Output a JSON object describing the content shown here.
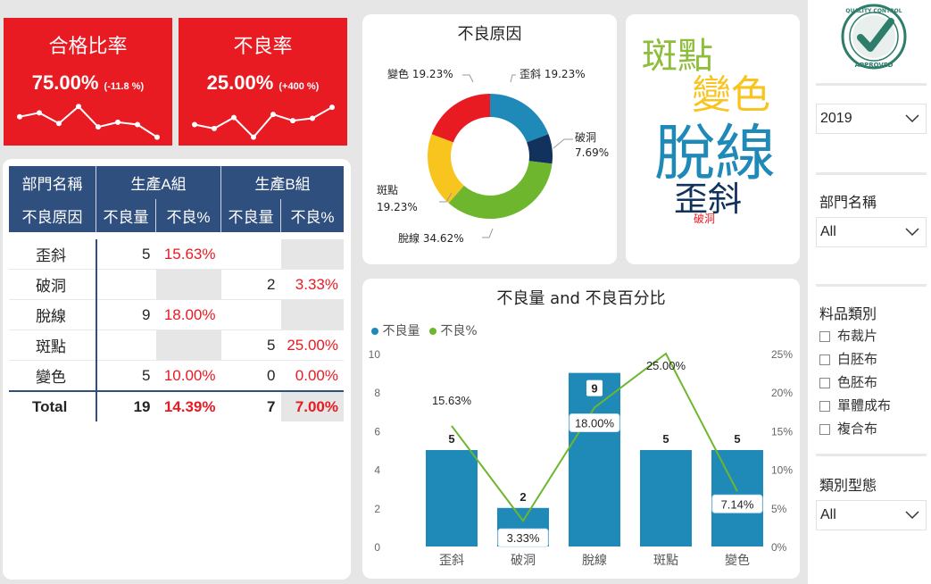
{
  "kpi_pass": {
    "title": "合格比率",
    "value": "75.00%",
    "delta": "(-11.8 %)",
    "trend": [
      0.62,
      0.72,
      0.45,
      0.88,
      0.36,
      0.48,
      0.42,
      0.1
    ]
  },
  "kpi_defect": {
    "title": "不良率",
    "value": "25.00%",
    "delta": "(+400 %)",
    "trend": [
      0.42,
      0.32,
      0.6,
      0.1,
      0.68,
      0.52,
      0.58,
      0.86
    ]
  },
  "matrix": {
    "col_header_dept": "部門名稱",
    "group_a": "生產A組",
    "group_b": "生產B組",
    "row_header": "不良原因",
    "sub_qty": "不良量",
    "sub_pct": "不良%",
    "rows": [
      {
        "cause": "歪斜",
        "a_qty": "5",
        "a_pct": "15.63%",
        "b_qty": "",
        "b_pct": ""
      },
      {
        "cause": "破洞",
        "a_qty": "",
        "a_pct": "",
        "b_qty": "2",
        "b_pct": "3.33%"
      },
      {
        "cause": "脫線",
        "a_qty": "9",
        "a_pct": "18.00%",
        "b_qty": "",
        "b_pct": ""
      },
      {
        "cause": "斑點",
        "a_qty": "",
        "a_pct": "",
        "b_qty": "5",
        "b_pct": "25.00%"
      },
      {
        "cause": "變色",
        "a_qty": "5",
        "a_pct": "10.00%",
        "b_qty": "0",
        "b_pct": "0.00%"
      }
    ],
    "total": {
      "label": "Total",
      "a_qty": "19",
      "a_pct": "14.39%",
      "b_qty": "7",
      "b_pct": "7.00%"
    }
  },
  "donut": {
    "title": "不良原因",
    "labels": [
      {
        "name": "歪斜",
        "pct": "19.23%"
      },
      {
        "name": "破洞",
        "pct": "7.69%"
      },
      {
        "name": "脫線",
        "pct": "34.62%"
      },
      {
        "name": "斑點",
        "pct": "19.23%"
      },
      {
        "name": "變色",
        "pct": "19.23%"
      }
    ]
  },
  "wordcloud": {
    "words": [
      "斑點",
      "變色",
      "脫線",
      "歪斜",
      "破洞"
    ]
  },
  "combo": {
    "title": "不良量 and 不良百分比",
    "legend_qty": "不良量",
    "legend_pct": "不良%",
    "y_left_ticks": [
      "0",
      "2",
      "4",
      "6",
      "8",
      "10"
    ],
    "y_right_ticks": [
      "0%",
      "5%",
      "10%",
      "15%",
      "20%",
      "25%"
    ]
  },
  "chart_data": [
    {
      "type": "pie",
      "title": "不良原因",
      "categories": [
        "歪斜",
        "破洞",
        "脫線",
        "斑點",
        "變色"
      ],
      "values": [
        19.23,
        7.69,
        34.62,
        19.23,
        19.23
      ],
      "colors": [
        "#1f89b8",
        "#12325e",
        "#6db62e",
        "#f8c41e",
        "#e81a22"
      ]
    },
    {
      "type": "bar",
      "title": "不良量 and 不良百分比",
      "categories": [
        "歪斜",
        "破洞",
        "脫線",
        "斑點",
        "變色"
      ],
      "series": [
        {
          "name": "不良量",
          "values": [
            5,
            2,
            9,
            5,
            5
          ],
          "color": "#1f89b8",
          "axis": "left"
        },
        {
          "name": "不良%",
          "values": [
            15.63,
            3.33,
            18.0,
            25.0,
            7.14
          ],
          "color": "#6db62e",
          "axis": "right",
          "kind": "line"
        }
      ],
      "ylim_left": [
        0,
        10
      ],
      "ylim_right": [
        0,
        25
      ]
    }
  ],
  "slicers": {
    "year": "2019",
    "dept_title": "部門名稱",
    "dept_value": "All",
    "material_title": "料品類別",
    "materials": [
      "布裁片",
      "白胚布",
      "色胚布",
      "單體成布",
      "複合布"
    ],
    "type_title": "類別型態",
    "type_value": "All"
  },
  "logo": {
    "top": "QUALITY CONTROL",
    "bottom": "APPROVED"
  }
}
